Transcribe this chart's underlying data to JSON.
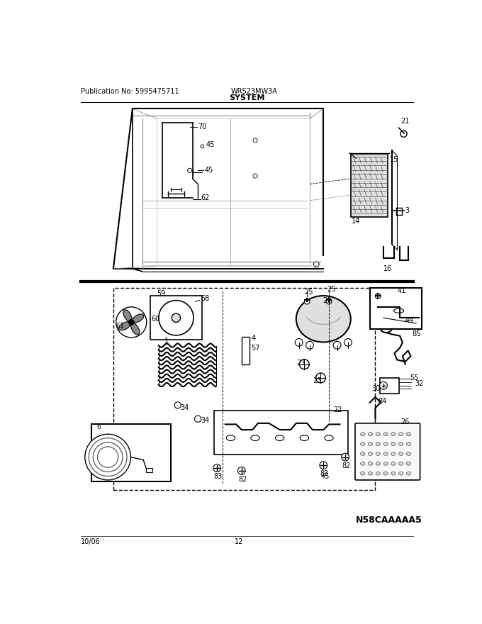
{
  "title": "SYSTEM",
  "pub_no": "Publication No: 5995475711",
  "model": "WRS23MW3A",
  "date": "10/06",
  "page": "12",
  "diagram_id": "N58CAAAAA5",
  "bg_color": "#ffffff",
  "fig_width": 6.8,
  "fig_height": 8.8,
  "dpi": 100
}
